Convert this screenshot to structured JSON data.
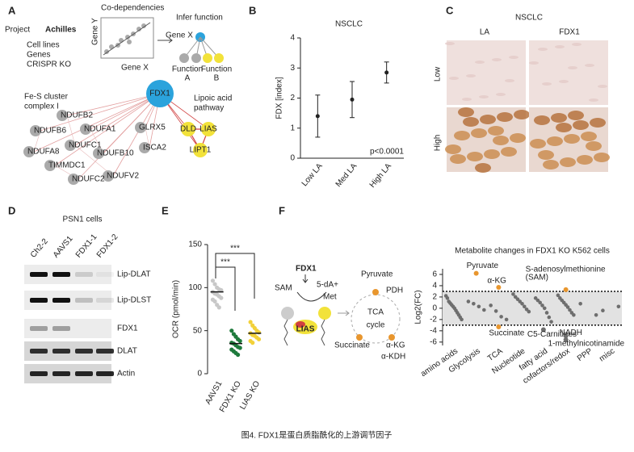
{
  "caption": "图4. FDX1是蛋白质脂酰化的上游调节因子",
  "panel_a": {
    "letter": "A",
    "logo": [
      "Project ",
      "Achilles"
    ],
    "inputs": [
      "Cell lines",
      "Genes",
      "CRISPR KO"
    ],
    "codependency": {
      "title": "Co-dependencies",
      "x_label": "Gene X",
      "y_label": "Gene Y"
    },
    "infer": {
      "title": "Infer function",
      "gene": "Gene X",
      "functions": [
        [
          "Function",
          "A"
        ],
        [
          "Function",
          "B"
        ]
      ]
    },
    "network": {
      "hub": "FDX1",
      "groups": [
        [
          "Fe-S cluster",
          "complex I"
        ],
        [
          "Lipoic acid",
          "pathway"
        ]
      ],
      "grey_nodes": [
        "NDUFB2",
        "NDUFB6",
        "NDUFA1",
        "GLRX5",
        "NDUFC1",
        "NDUFA8",
        "NDUFB10",
        "ISCA2",
        "TIMMDC1",
        "NDUFV2",
        "NDUFC2"
      ],
      "yellow_nodes": [
        "DLD",
        "LIAS",
        "LIPT1"
      ]
    }
  },
  "panel_c": {
    "letter": "C",
    "title": "NSCLC",
    "columns": [
      "LA",
      "FDX1"
    ],
    "rows": [
      "Low",
      "High"
    ]
  },
  "panel_d": {
    "letter": "D",
    "title": "PSN1 cells",
    "lanes": [
      "Ch2-2",
      "AAVS1",
      "FDX1-1",
      "FDX1-2"
    ],
    "rows": [
      "Lip-DLAT",
      "Lip-DLST",
      "FDX1",
      "DLAT",
      "Actin"
    ]
  },
  "panel_f": {
    "letter": "F",
    "labels": {
      "fdx1": "FDX1",
      "sam": "SAM",
      "product": [
        "5-dA+",
        "Met"
      ],
      "lias": "LIAS",
      "pyruvate": "Pyruvate",
      "pdh": "PDH",
      "tca": [
        "TCA",
        "cycle"
      ],
      "succinate": "Succinate",
      "akg": "α-KG",
      "akdh": "α-KDH"
    }
  },
  "chart_data": [
    {
      "type": "errorbar",
      "letter": "B",
      "title": "NSCLC",
      "y_label": "FDX [index]",
      "categories": [
        "Low LA",
        "Med LA",
        "High LA"
      ],
      "values": [
        1.4,
        1.95,
        2.85
      ],
      "errors": [
        0.7,
        0.6,
        0.35
      ],
      "ylim": [
        0,
        4
      ],
      "yticks": [
        0,
        1,
        2,
        3,
        4
      ],
      "annotation": "p<0.0001",
      "color": "#222222"
    },
    {
      "type": "dot",
      "letter": "E",
      "y_label": "OCR (pmol/min)",
      "categories": [
        "AAVS1",
        "FDX1 KO",
        "LIAS KO"
      ],
      "colors": [
        "#c8c8c8",
        "#1e7a3c",
        "#f2d13a"
      ],
      "values": [
        [
          108,
          104,
          100,
          98,
          97,
          95,
          93,
          92,
          90,
          88,
          86,
          84,
          80,
          77
        ],
        [
          50,
          46,
          43,
          40,
          38,
          36,
          35,
          33,
          31,
          30,
          28,
          26,
          24,
          22
        ],
        [
          60,
          56,
          53,
          50,
          48,
          47,
          45,
          44,
          42,
          40,
          38,
          36
        ]
      ],
      "means": [
        95,
        35,
        47
      ],
      "annotations": [
        "***",
        "***"
      ],
      "ylim": [
        0,
        150
      ],
      "yticks": [
        0,
        50,
        100,
        150
      ]
    },
    {
      "type": "strip",
      "title": "Metabolite changes in FDX1 KO K562 cells",
      "y_label": "Log2(FC)",
      "categories": [
        "amino acids",
        "Glycolysis",
        "TCA",
        "Nucleotide",
        "fatty acid",
        "cofactors/redox",
        "PPP",
        "misc"
      ],
      "values": [
        [
          2.2,
          1.8,
          1.2,
          0.9,
          0.6,
          0.3,
          0,
          -0.4,
          -0.8,
          -1.2,
          -1.6,
          -2
        ],
        [
          1.2,
          0.8,
          0.3,
          -0.3
        ],
        [
          0.5,
          -0.5,
          -1.5,
          -2
        ],
        [
          2.5,
          2,
          1.6,
          1.2,
          0.8,
          0.3,
          -0.2,
          -0.6
        ],
        [
          1.8,
          1.4,
          1,
          0.5,
          0,
          -0.8,
          -1.6,
          -2.4
        ],
        [
          2.3,
          1.8,
          1.4,
          1,
          0.6,
          0.2,
          -0.3,
          -0.8,
          -1.2
        ],
        [
          0.8,
          -1.2
        ],
        [
          -0.4,
          0.3
        ]
      ],
      "color": "#6e6e6e",
      "annotations": [
        {
          "lines": [
            "Pyruvate"
          ],
          "category": "Glycolysis",
          "value": 6.2,
          "color": "#e8962e"
        },
        {
          "lines": [
            "α-KG"
          ],
          "category": "TCA",
          "value": 3.7,
          "color": "#e8962e"
        },
        {
          "lines": [
            "S-adenosylmethionine",
            "(SAM)"
          ],
          "category": "cofactors/redox",
          "value": 3.3,
          "color": "#e8962e"
        },
        {
          "lines": [
            "Succinate"
          ],
          "category": "TCA",
          "value": -3.3,
          "color": "#e8962e"
        },
        {
          "lines": [
            "C5-Carnitines"
          ],
          "category": "fatty acid",
          "value": -3.8,
          "color": "#6e6e6e"
        },
        {
          "lines": [
            "NADH"
          ],
          "category": "cofactors/redox",
          "value": -4.9,
          "color": "#6e6e6e"
        },
        {
          "lines": [
            "1-methylnicotinamide"
          ],
          "category": "cofactors/redox",
          "value": -5.6,
          "color": "#6e6e6e"
        }
      ],
      "threshold": [
        -3,
        3
      ],
      "ylim": [
        -6.6,
        7
      ],
      "yticks": [
        -6,
        -4,
        -2,
        0,
        2,
        4,
        6
      ]
    }
  ]
}
